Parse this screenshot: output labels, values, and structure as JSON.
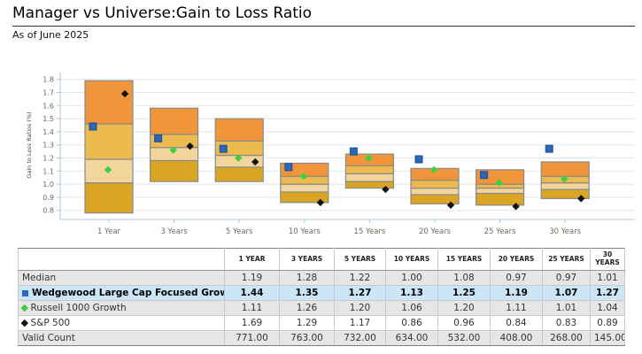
{
  "page": {
    "title": "Manager vs Universe:Gain to Loss Ratio",
    "subtitle": "As of June 2025"
  },
  "chart_data": {
    "type": "box",
    "title": "Manager vs Universe: Gain to Loss Ratio",
    "ylabel": "Gain to Loss Ratios (%)",
    "ylim": [
      0.8,
      1.8
    ],
    "ytick_step": 0.1,
    "grid": "horizontal",
    "categories": [
      "1 Year",
      "3 Years",
      "5 Years",
      "10 Years",
      "15 Years",
      "20 Years",
      "25 Years",
      "30 Years"
    ],
    "percentile_bands_low_q1_med_q3_high": [
      [
        0.78,
        1.01,
        1.19,
        1.46,
        1.79
      ],
      [
        1.02,
        1.18,
        1.28,
        1.38,
        1.58
      ],
      [
        1.02,
        1.13,
        1.22,
        1.33,
        1.5
      ],
      [
        0.86,
        0.94,
        1.0,
        1.06,
        1.16
      ],
      [
        0.97,
        1.02,
        1.08,
        1.14,
        1.23
      ],
      [
        0.85,
        0.92,
        0.97,
        1.03,
        1.12
      ],
      [
        0.84,
        0.93,
        0.97,
        1.0,
        1.11
      ],
      [
        0.89,
        0.96,
        1.01,
        1.06,
        1.17
      ]
    ],
    "band_colors_bottom_to_top": [
      "#d9a522",
      "#f1d59c",
      "#ecba4e",
      "#f0953a"
    ],
    "band_border_color": "#8a8a8a",
    "median": [
      1.19,
      1.28,
      1.22,
      1.0,
      1.08,
      0.97,
      0.97,
      1.01
    ],
    "series": [
      {
        "name": "Wedgewood Large Cap Focused Growth",
        "marker": "blue-square",
        "color": "#2a67b8",
        "values": [
          1.44,
          1.35,
          1.27,
          1.13,
          1.25,
          1.19,
          1.07,
          1.27
        ]
      },
      {
        "name": "Russell 1000 Growth",
        "marker": "green-diamond",
        "color": "#3fce3f",
        "values": [
          1.11,
          1.26,
          1.2,
          1.06,
          1.2,
          1.11,
          1.01,
          1.04
        ]
      },
      {
        "name": "S&P 500",
        "marker": "black-diamond",
        "color": "#141414",
        "values": [
          1.69,
          1.29,
          1.17,
          0.86,
          0.96,
          0.84,
          0.83,
          0.89
        ]
      }
    ]
  },
  "table": {
    "columns": [
      "",
      "1 YEAR",
      "3 YEARS",
      "5 YEARS",
      "10 YEARS",
      "15 YEARS",
      "20 YEARS",
      "25 YEARS",
      "30 YEARS"
    ],
    "rows": [
      {
        "label": "Median",
        "icon": "none",
        "style": "gray",
        "values": [
          "1.19",
          "1.28",
          "1.22",
          "1.00",
          "1.08",
          "0.97",
          "0.97",
          "1.01"
        ]
      },
      {
        "label": "Wedgewood Large Cap Focused Growth",
        "icon": "blue-square",
        "style": "highlight",
        "values": [
          "1.44",
          "1.35",
          "1.27",
          "1.13",
          "1.25",
          "1.19",
          "1.07",
          "1.27"
        ]
      },
      {
        "label": "Russell 1000 Growth",
        "icon": "green-diamond",
        "style": "gray",
        "values": [
          "1.11",
          "1.26",
          "1.20",
          "1.06",
          "1.20",
          "1.11",
          "1.01",
          "1.04"
        ]
      },
      {
        "label": "S&P 500",
        "icon": "black-diamond",
        "style": "white",
        "values": [
          "1.69",
          "1.29",
          "1.17",
          "0.86",
          "0.96",
          "0.84",
          "0.83",
          "0.89"
        ]
      },
      {
        "label": "Valid Count",
        "icon": "none",
        "style": "gray",
        "values": [
          "771.00",
          "763.00",
          "732.00",
          "634.00",
          "532.00",
          "408.00",
          "268.00",
          "145.00"
        ]
      }
    ]
  },
  "colors": {
    "grid_line": "#dbe8f1",
    "axis_line": "#a9c7db",
    "tick_label": "#666666",
    "x_label": "#6b6b60",
    "marker_blue": "#2a67b8",
    "marker_green": "#3fce3f",
    "marker_black": "#141414",
    "highlight_row_bg": "#cbe7f7",
    "gray_row_bg": "#e6e6e6"
  }
}
